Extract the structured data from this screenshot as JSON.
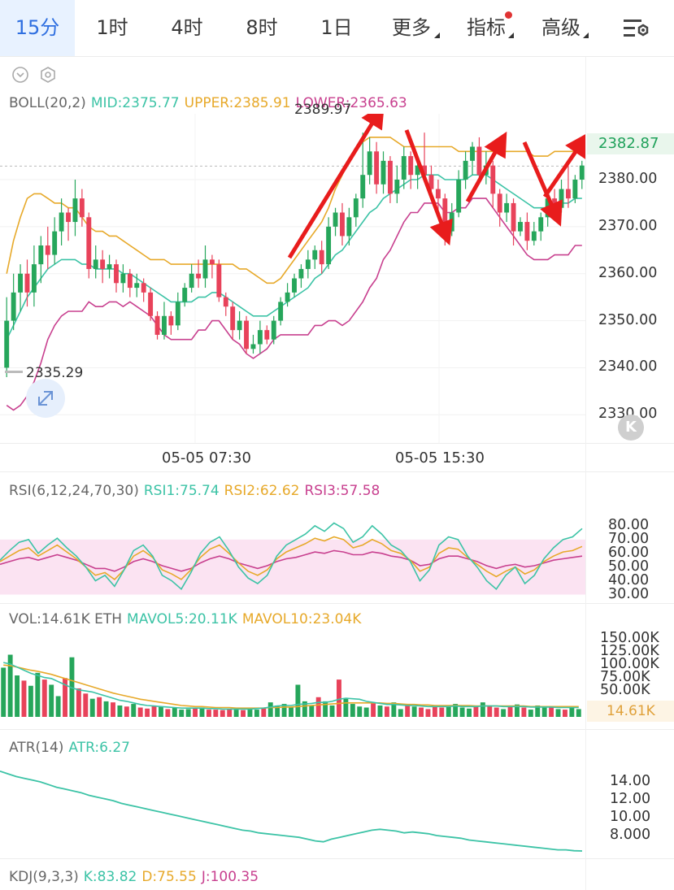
{
  "tabs": [
    {
      "label": "15分",
      "active": true
    },
    {
      "label": "1时"
    },
    {
      "label": "4时"
    },
    {
      "label": "8时"
    },
    {
      "label": "1日"
    },
    {
      "label": "更多",
      "dropdown": true
    },
    {
      "label": "指标",
      "dropdown": true,
      "badge": true
    },
    {
      "label": "高级",
      "dropdown": true
    }
  ],
  "colors": {
    "up": "#26a65b",
    "down": "#e8425a",
    "mid": "#3cc3a6",
    "upper": "#e7a92a",
    "lower": "#c8408f",
    "arrow": "#e81c1c",
    "accent": "#2f6fe0"
  },
  "icons": {
    "settings": "chart-settings-icon",
    "collapse": "chevron-down-circle-icon",
    "indicator_settings": "hexagon-gear-icon",
    "expand": "expand-arrows-icon",
    "kline": "k-letter-icon"
  },
  "boll": {
    "label": "BOLL(20,2)",
    "mid": "MID:2375.77",
    "upper": "UPPER:2385.91",
    "lower": "LOWER:2365.63",
    "high_marker": "2389.97",
    "low_marker": "2335.29",
    "last_price": "2382.87",
    "y_ticks": [
      "2380.00",
      "2370.00",
      "2360.00",
      "2350.00",
      "2340.00",
      "2330.00"
    ],
    "x_ticks": [
      "05-05 07:30",
      "05-05 15:30"
    ]
  },
  "rsi": {
    "label": "RSI(6,12,24,70,30)",
    "rsi1": "RSI1:75.74",
    "rsi2": "RSI2:62.62",
    "rsi3": "RSI3:57.58",
    "y_ticks": [
      "80.00",
      "70.00",
      "60.00",
      "50.00",
      "40.00",
      "30.00"
    ]
  },
  "vol": {
    "label": "VOL:14.61K ETH",
    "mavol5": "MAVOL5:20.11K",
    "mavol10": "MAVOL10:23.04K",
    "last": "14.61K",
    "y_ticks": [
      "150.00K",
      "125.00K",
      "100.00K",
      "75.00K",
      "50.00K"
    ]
  },
  "atr": {
    "label": "ATR(14)",
    "value": "ATR:6.27",
    "y_ticks": [
      "14.00",
      "12.00",
      "10.00",
      "8.000"
    ]
  },
  "kdj": {
    "label": "KDJ(9,3,3)",
    "k": "K:83.82",
    "d": "D:75.55",
    "j": "J:100.35"
  },
  "chart_data": {
    "type": "candlestick",
    "symbol_unit": "ETH",
    "interval": "15分",
    "x_ticks": [
      "05-05 07:30",
      "05-05 15:30"
    ],
    "ylim": [
      2324,
      2394
    ],
    "candles": [
      [
        2340,
        2350,
        2355,
        2338
      ],
      [
        2350,
        2356,
        2360,
        2348
      ],
      [
        2356,
        2360,
        2362,
        2352
      ],
      [
        2360,
        2356,
        2363,
        2353
      ],
      [
        2356,
        2362,
        2366,
        2353
      ],
      [
        2362,
        2366,
        2368,
        2358
      ],
      [
        2366,
        2364,
        2370,
        2361
      ],
      [
        2364,
        2369,
        2372,
        2362
      ],
      [
        2369,
        2373,
        2376,
        2366
      ],
      [
        2373,
        2371,
        2374,
        2367
      ],
      [
        2371,
        2376,
        2380,
        2368
      ],
      [
        2376,
        2372,
        2378,
        2370
      ],
      [
        2372,
        2361,
        2373,
        2359
      ],
      [
        2361,
        2363,
        2366,
        2359
      ],
      [
        2363,
        2361,
        2365,
        2358
      ],
      [
        2361,
        2362,
        2364,
        2359
      ],
      [
        2362,
        2358,
        2363,
        2356
      ],
      [
        2358,
        2360,
        2362,
        2356
      ],
      [
        2360,
        2357,
        2361,
        2355
      ],
      [
        2357,
        2358,
        2360,
        2355
      ],
      [
        2358,
        2356,
        2359,
        2354
      ],
      [
        2356,
        2351,
        2357,
        2350
      ],
      [
        2351,
        2347,
        2352,
        2346
      ],
      [
        2347,
        2351,
        2354,
        2346
      ],
      [
        2351,
        2349,
        2352,
        2347
      ],
      [
        2349,
        2354,
        2356,
        2348
      ],
      [
        2354,
        2357,
        2358,
        2353
      ],
      [
        2357,
        2360,
        2362,
        2356
      ],
      [
        2360,
        2359,
        2363,
        2357
      ],
      [
        2359,
        2363,
        2366,
        2357
      ],
      [
        2363,
        2362,
        2364,
        2359
      ],
      [
        2362,
        2355,
        2363,
        2354
      ],
      [
        2355,
        2353,
        2356,
        2351
      ],
      [
        2353,
        2348,
        2354,
        2346
      ],
      [
        2348,
        2350,
        2352,
        2346
      ],
      [
        2350,
        2344,
        2351,
        2343
      ],
      [
        2344,
        2345,
        2347,
        2343
      ],
      [
        2345,
        2348,
        2350,
        2343
      ],
      [
        2348,
        2346,
        2349,
        2345
      ],
      [
        2346,
        2350,
        2351,
        2345
      ],
      [
        2350,
        2354,
        2355,
        2349
      ],
      [
        2354,
        2356,
        2358,
        2353
      ],
      [
        2356,
        2359,
        2360,
        2355
      ],
      [
        2359,
        2361,
        2362,
        2357
      ],
      [
        2361,
        2363,
        2365,
        2359
      ],
      [
        2363,
        2365,
        2366,
        2361
      ],
      [
        2365,
        2362,
        2367,
        2360
      ],
      [
        2362,
        2370,
        2372,
        2361
      ],
      [
        2370,
        2373,
        2374,
        2368
      ],
      [
        2373,
        2368,
        2375,
        2366
      ],
      [
        2368,
        2372,
        2374,
        2366
      ],
      [
        2372,
        2376,
        2377,
        2370
      ],
      [
        2376,
        2381,
        2390,
        2374
      ],
      [
        2381,
        2386,
        2389,
        2379
      ],
      [
        2386,
        2379,
        2388,
        2377
      ],
      [
        2379,
        2384,
        2386,
        2377
      ],
      [
        2384,
        2377,
        2385,
        2375
      ],
      [
        2377,
        2380,
        2383,
        2375
      ],
      [
        2380,
        2385,
        2387,
        2378
      ],
      [
        2385,
        2381,
        2386,
        2378
      ],
      [
        2381,
        2383,
        2385,
        2378
      ],
      [
        2383,
        2381,
        2390,
        2380
      ],
      [
        2381,
        2378,
        2383,
        2376
      ],
      [
        2378,
        2376,
        2380,
        2373
      ],
      [
        2376,
        2369,
        2377,
        2366
      ],
      [
        2369,
        2373,
        2375,
        2368
      ],
      [
        2373,
        2380,
        2382,
        2372
      ],
      [
        2380,
        2384,
        2386,
        2378
      ],
      [
        2384,
        2387,
        2388,
        2381
      ],
      [
        2387,
        2381,
        2389,
        2379
      ],
      [
        2381,
        2383,
        2386,
        2379
      ],
      [
        2383,
        2377,
        2384,
        2374
      ],
      [
        2377,
        2373,
        2378,
        2370
      ],
      [
        2373,
        2375,
        2377,
        2371
      ],
      [
        2375,
        2369,
        2376,
        2366
      ],
      [
        2369,
        2371,
        2372,
        2368
      ],
      [
        2371,
        2367,
        2373,
        2365
      ],
      [
        2367,
        2369,
        2371,
        2366
      ],
      [
        2369,
        2372,
        2373,
        2367
      ],
      [
        2372,
        2376,
        2378,
        2370
      ],
      [
        2376,
        2374,
        2378,
        2372
      ],
      [
        2374,
        2378,
        2380,
        2373
      ],
      [
        2378,
        2376,
        2383,
        2374
      ],
      [
        2376,
        2380,
        2381,
        2375
      ],
      [
        2380,
        2383,
        2384,
        2378
      ]
    ],
    "boll_mid": [
      2346,
      2349,
      2352,
      2355,
      2357,
      2359,
      2361,
      2362,
      2363,
      2363,
      2363,
      2362,
      2362,
      2361,
      2361,
      2361,
      2361,
      2360,
      2360,
      2359,
      2358,
      2357,
      2356,
      2355,
      2354,
      2354,
      2354,
      2354,
      2355,
      2355,
      2356,
      2356,
      2355,
      2354,
      2353,
      2352,
      2351,
      2351,
      2351,
      2352,
      2353,
      2354,
      2355,
      2356,
      2357,
      2359,
      2360,
      2362,
      2364,
      2365,
      2367,
      2369,
      2371,
      2373,
      2374,
      2376,
      2377,
      2378,
      2379,
      2380,
      2380,
      2381,
      2381,
      2381,
      2380,
      2380,
      2380,
      2380,
      2381,
      2381,
      2381,
      2380,
      2379,
      2378,
      2377,
      2376,
      2375,
      2374,
      2374,
      2374,
      2375,
      2375,
      2375,
      2376,
      2376
    ],
    "boll_upper": [
      2360,
      2367,
      2372,
      2376,
      2377,
      2377,
      2376,
      2375,
      2375,
      2374,
      2374,
      2372,
      2370,
      2369,
      2369,
      2368,
      2368,
      2367,
      2366,
      2365,
      2364,
      2363,
      2363,
      2363,
      2362,
      2362,
      2362,
      2362,
      2362,
      2362,
      2362,
      2362,
      2362,
      2362,
      2361,
      2361,
      2360,
      2359,
      2358,
      2358,
      2359,
      2361,
      2363,
      2365,
      2367,
      2369,
      2371,
      2374,
      2378,
      2381,
      2384,
      2386,
      2388,
      2389,
      2389,
      2389,
      2389,
      2388,
      2387,
      2387,
      2387,
      2387,
      2387,
      2387,
      2387,
      2387,
      2386,
      2386,
      2386,
      2386,
      2386,
      2386,
      2386,
      2386,
      2386,
      2386,
      2386,
      2385,
      2385,
      2385,
      2386,
      2386,
      2386,
      2386,
      2386
    ],
    "boll_lower": [
      2332,
      2331,
      2332,
      2334,
      2337,
      2341,
      2346,
      2349,
      2351,
      2352,
      2352,
      2352,
      2354,
      2353,
      2353,
      2354,
      2354,
      2353,
      2354,
      2353,
      2352,
      2351,
      2349,
      2347,
      2346,
      2346,
      2346,
      2346,
      2348,
      2348,
      2350,
      2350,
      2348,
      2346,
      2345,
      2343,
      2342,
      2343,
      2344,
      2346,
      2347,
      2347,
      2347,
      2347,
      2347,
      2349,
      2349,
      2350,
      2350,
      2349,
      2350,
      2352,
      2354,
      2357,
      2359,
      2363,
      2365,
      2368,
      2371,
      2373,
      2373,
      2375,
      2375,
      2375,
      2373,
      2373,
      2374,
      2374,
      2376,
      2376,
      2376,
      2374,
      2372,
      2370,
      2368,
      2366,
      2364,
      2363,
      2363,
      2363,
      2364,
      2364,
      2364,
      2366,
      2366
    ],
    "rsi1": [
      55,
      62,
      68,
      70,
      60,
      66,
      71,
      64,
      58,
      50,
      40,
      44,
      36,
      48,
      62,
      66,
      58,
      44,
      40,
      34,
      46,
      60,
      68,
      72,
      62,
      50,
      42,
      38,
      44,
      58,
      66,
      70,
      74,
      80,
      76,
      82,
      78,
      68,
      72,
      80,
      74,
      66,
      62,
      54,
      40,
      48,
      66,
      72,
      70,
      58,
      50,
      40,
      34,
      44,
      50,
      38,
      44,
      56,
      64,
      70,
      72,
      78
    ],
    "rsi2": [
      54,
      58,
      62,
      64,
      58,
      62,
      66,
      61,
      56,
      50,
      44,
      46,
      41,
      48,
      58,
      62,
      57,
      48,
      45,
      41,
      48,
      57,
      63,
      66,
      60,
      53,
      47,
      44,
      48,
      56,
      61,
      64,
      67,
      71,
      69,
      72,
      70,
      64,
      66,
      70,
      67,
      62,
      60,
      55,
      47,
      50,
      60,
      64,
      63,
      57,
      52,
      47,
      43,
      47,
      50,
      45,
      48,
      54,
      58,
      61,
      62,
      65
    ],
    "rsi3": [
      52,
      54,
      56,
      57,
      55,
      57,
      59,
      57,
      55,
      52,
      49,
      49,
      47,
      50,
      54,
      56,
      54,
      51,
      49,
      47,
      49,
      53,
      56,
      58,
      56,
      53,
      51,
      49,
      51,
      54,
      56,
      57,
      59,
      61,
      60,
      62,
      61,
      59,
      59,
      61,
      60,
      58,
      57,
      55,
      51,
      52,
      56,
      58,
      58,
      56,
      54,
      51,
      49,
      51,
      52,
      50,
      51,
      53,
      55,
      56,
      57,
      58
    ],
    "volume": [
      95,
      120,
      80,
      70,
      60,
      85,
      72,
      62,
      40,
      75,
      115,
      55,
      45,
      35,
      38,
      30,
      28,
      22,
      20,
      25,
      18,
      16,
      22,
      20,
      15,
      18,
      14,
      15,
      16,
      18,
      14,
      14,
      13,
      15,
      14,
      13,
      16,
      14,
      18,
      28,
      22,
      25,
      18,
      62,
      30,
      22,
      38,
      30,
      22,
      72,
      35,
      25,
      20,
      18,
      28,
      22,
      20,
      28,
      15,
      22,
      20,
      18,
      15,
      22,
      18,
      20,
      25,
      18,
      16,
      20,
      28,
      22,
      18,
      15,
      20,
      24,
      18,
      14,
      22,
      18,
      20,
      15,
      14,
      18,
      15
    ],
    "mavol5": [
      105,
      102,
      96,
      90,
      84,
      80,
      76,
      74,
      68,
      62,
      56,
      52,
      50,
      48,
      44,
      40,
      36,
      32,
      30,
      27,
      24,
      22,
      21,
      20,
      19,
      18,
      17,
      17,
      17,
      17,
      16,
      16,
      15,
      15,
      15,
      15,
      15,
      16,
      17,
      19,
      21,
      22,
      22,
      24,
      25,
      26,
      28,
      28,
      30,
      34,
      36,
      35,
      34,
      30,
      28,
      26,
      24,
      24,
      23,
      22,
      22,
      21,
      20,
      20,
      20,
      20,
      21,
      20,
      20,
      20,
      21,
      21,
      21,
      20,
      20,
      20,
      20,
      19,
      19,
      19,
      19,
      18,
      18,
      18,
      18
    ],
    "mavol10": [
      100,
      99,
      96,
      93,
      90,
      88,
      85,
      82,
      78,
      74,
      70,
      66,
      62,
      58,
      54,
      50,
      46,
      43,
      40,
      37,
      34,
      32,
      30,
      28,
      26,
      24,
      22,
      21,
      20,
      20,
      19,
      18,
      18,
      18,
      17,
      17,
      17,
      17,
      17,
      18,
      18,
      19,
      19,
      20,
      21,
      22,
      23,
      24,
      25,
      26,
      27,
      27,
      27,
      27,
      27,
      27,
      26,
      26,
      25,
      24,
      24,
      23,
      23,
      22,
      22,
      22,
      22,
      22,
      22,
      21,
      21,
      21,
      21,
      21,
      21,
      21,
      21,
      20,
      20,
      20,
      20,
      20,
      20,
      20,
      20
    ],
    "atr": [
      15.2,
      14.9,
      14.6,
      14.4,
      14.2,
      14.0,
      13.7,
      13.4,
      13.2,
      13.0,
      12.8,
      12.5,
      12.3,
      12.1,
      11.9,
      11.6,
      11.4,
      11.2,
      11.0,
      10.8,
      10.6,
      10.4,
      10.2,
      10.0,
      9.8,
      9.6,
      9.4,
      9.2,
      9.0,
      8.8,
      8.6,
      8.5,
      8.3,
      8.2,
      8.1,
      8.0,
      7.9,
      7.8,
      7.6,
      7.4,
      7.3,
      7.6,
      7.8,
      8.0,
      8.2,
      8.4,
      8.6,
      8.7,
      8.6,
      8.5,
      8.3,
      8.4,
      8.3,
      8.2,
      8.0,
      7.9,
      7.8,
      7.7,
      7.5,
      7.4,
      7.3,
      7.2,
      7.1,
      7.0,
      6.9,
      6.8,
      6.7,
      6.6,
      6.5,
      6.4,
      6.4,
      6.3,
      6.27
    ]
  }
}
